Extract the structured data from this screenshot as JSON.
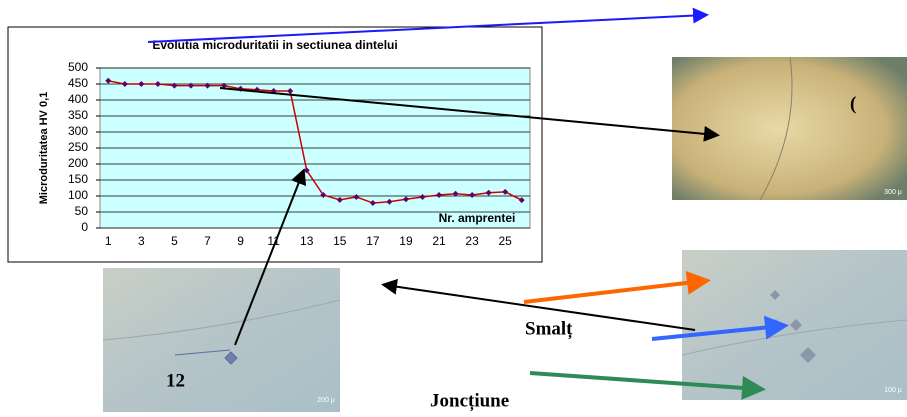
{
  "chart_data": {
    "type": "line",
    "title": "Evolutia microduritatii in sectiunea dintelui",
    "y_label": "Microduritatea HV 0,1",
    "x_label": "Nr. amprentei",
    "categories": [
      1,
      null,
      3,
      null,
      5,
      null,
      7,
      null,
      9,
      null,
      11,
      null,
      13,
      null,
      15,
      null,
      17,
      null,
      19,
      null,
      21,
      null,
      23,
      null,
      25,
      null
    ],
    "values": [
      460,
      450,
      450,
      450,
      445,
      445,
      445,
      445,
      435,
      432,
      428,
      428,
      180,
      103,
      88,
      97,
      78,
      82,
      90,
      97,
      103,
      107,
      103,
      110,
      113,
      87
    ],
    "color": "#cc0000",
    "marker_color": "#660066",
    "ylim": [
      0,
      500
    ],
    "yticks": [
      0,
      50,
      100,
      150,
      200,
      250,
      300,
      350,
      400,
      450,
      500
    ],
    "grid": true
  },
  "labels": {
    "enamel": "Smalț",
    "junction": "Joncțiune",
    "point": "12",
    "scale_top": "300 µ",
    "scale_left": "200 µ",
    "scale_right": "100 µ"
  }
}
